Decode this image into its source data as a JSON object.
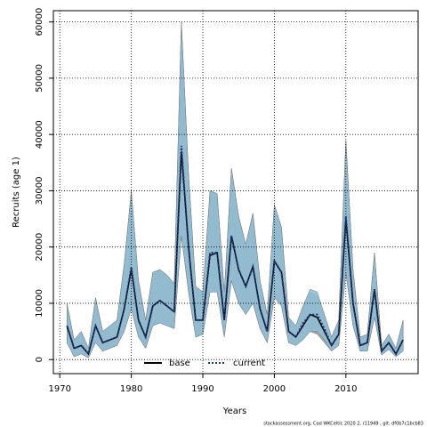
{
  "chart_data": {
    "type": "line-band",
    "x_label": "Years",
    "y_label": "Recruits (age 1)",
    "source_note": "stockassessment.org, Cod WKCeltic 2020 2, r11949 , git: df0b7c1bcb83",
    "x": [
      1971,
      1972,
      1973,
      1974,
      1975,
      1976,
      1977,
      1978,
      1979,
      1980,
      1981,
      1982,
      1983,
      1984,
      1985,
      1986,
      1987,
      1988,
      1989,
      1990,
      1991,
      1992,
      1993,
      1994,
      1995,
      1996,
      1997,
      1998,
      1999,
      2000,
      2001,
      2002,
      2003,
      2004,
      2005,
      2006,
      2007,
      2008,
      2009,
      2010,
      2011,
      2012,
      2013,
      2014,
      2015,
      2016,
      2017,
      2018
    ],
    "series": [
      {
        "name": "base",
        "color": "#000000",
        "band_color": "#9a9a9a",
        "dash": false,
        "values": [
          6000,
          2000,
          2500,
          1000,
          6000,
          3000,
          3500,
          4000,
          9000,
          16000,
          7000,
          4000,
          9500,
          10500,
          9500,
          8500,
          37000,
          20000,
          7000,
          7000,
          18500,
          19000,
          7000,
          22000,
          16000,
          13000,
          16500,
          9000,
          5000,
          17500,
          15500,
          5000,
          4000,
          6000,
          8000,
          7500,
          5000,
          2500,
          4500,
          25000,
          10000,
          2500,
          3000,
          12500,
          1500,
          3000,
          1000,
          3500
        ],
        "lower": [
          3000,
          500,
          1000,
          300,
          3000,
          1500,
          2000,
          2500,
          5000,
          9000,
          4000,
          2000,
          6000,
          6500,
          6000,
          5500,
          22000,
          12000,
          4000,
          4500,
          12000,
          12000,
          4000,
          14000,
          10000,
          8000,
          10000,
          5500,
          3000,
          11000,
          9500,
          3000,
          2500,
          3500,
          5000,
          4500,
          3000,
          1500,
          2500,
          15500,
          6000,
          1500,
          1500,
          7500,
          800,
          1800,
          500,
          1500
        ],
        "upper": [
          10000,
          3500,
          5000,
          2000,
          11000,
          5000,
          6000,
          7000,
          17000,
          30000,
          14000,
          7000,
          15500,
          16000,
          15000,
          13500,
          60000,
          33000,
          13000,
          12000,
          30000,
          29500,
          12000,
          34000,
          25500,
          20500,
          26000,
          14000,
          8000,
          27500,
          23500,
          7500,
          6000,
          9500,
          12000,
          11500,
          8000,
          4000,
          7000,
          39000,
          16000,
          4000,
          4500,
          19000,
          2500,
          4500,
          2000,
          7000
        ]
      },
      {
        "name": "current",
        "color": "#1c3a78",
        "band_color": "#8fc0d8",
        "dash": true,
        "values": [
          6000,
          2000,
          2500,
          1000,
          6000,
          3000,
          3500,
          4000,
          9000,
          16500,
          7000,
          4000,
          9500,
          10500,
          9500,
          8500,
          38000,
          20000,
          7000,
          7000,
          19000,
          19000,
          7000,
          22000,
          16000,
          13000,
          16500,
          9000,
          5000,
          17500,
          15500,
          5000,
          4000,
          6500,
          8000,
          8000,
          5500,
          2500,
          4500,
          25500,
          10000,
          2500,
          3000,
          12500,
          1500,
          3000,
          1000,
          3500
        ],
        "lower": [
          3000,
          500,
          1000,
          300,
          3000,
          1500,
          2000,
          2500,
          5000,
          9000,
          4000,
          2000,
          6000,
          6500,
          6000,
          5500,
          22000,
          12000,
          4000,
          4500,
          12000,
          12000,
          4000,
          14000,
          10000,
          8000,
          10000,
          5500,
          3000,
          11000,
          9500,
          3000,
          2500,
          3500,
          5000,
          5000,
          3500,
          1500,
          2500,
          15500,
          6000,
          1500,
          1500,
          7500,
          800,
          1800,
          500,
          1500
        ],
        "upper": [
          10000,
          3500,
          5000,
          2000,
          11000,
          5000,
          6000,
          7000,
          17000,
          30000,
          14000,
          7000,
          15500,
          16000,
          15000,
          13500,
          60000,
          33000,
          13000,
          12000,
          30000,
          29500,
          12000,
          34000,
          25500,
          20500,
          26000,
          14000,
          8000,
          27500,
          23500,
          7500,
          6000,
          9500,
          12500,
          12000,
          8000,
          4000,
          7000,
          39000,
          16000,
          4000,
          4500,
          19000,
          2500,
          4500,
          2000,
          7000
        ]
      }
    ],
    "xlim": [
      1969.1,
      2020.1
    ],
    "xticks": [
      1970,
      1980,
      1990,
      2000,
      2010
    ],
    "ylim": [
      -2500,
      62000
    ],
    "yticks": [
      0,
      10000,
      20000,
      30000,
      40000,
      50000,
      60000
    ],
    "grid": true,
    "legend": "bottom"
  }
}
